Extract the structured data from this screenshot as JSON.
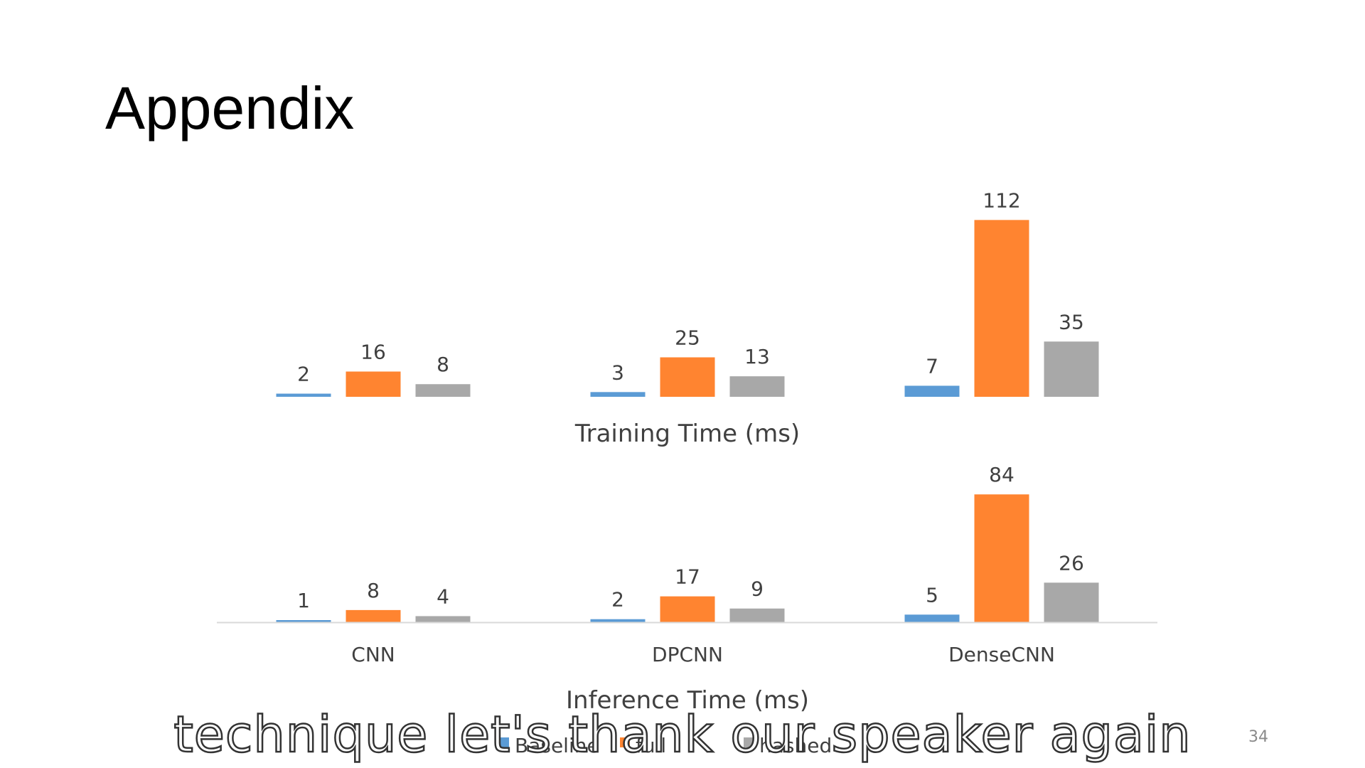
{
  "slide": {
    "title": "Appendix",
    "page_number": "34",
    "subtitle": "technique let's thank our speaker again"
  },
  "colors": {
    "Baseline": "#5b9bd5",
    "series2": "#ff8430",
    "series3": "#a8a8a8"
  },
  "chart_data": [
    {
      "type": "bar",
      "title": "Training Time (ms)",
      "categories": [
        "CNN",
        "DPCNN",
        "DenseCNN"
      ],
      "series": [
        {
          "values": [
            2,
            3,
            7
          ]
        },
        {
          "values": [
            16,
            25,
            112
          ]
        },
        {
          "values": [
            8,
            13,
            35
          ]
        }
      ],
      "data_labels": true
    },
    {
      "type": "bar",
      "title": "Inference Time (ms)",
      "categories": [
        "CNN",
        "DPCNN",
        "DenseCNN"
      ],
      "series": [
        {
          "values": [
            1,
            2,
            5
          ]
        },
        {
          "values": [
            8,
            17,
            84
          ]
        },
        {
          "values": [
            4,
            9,
            26
          ]
        }
      ],
      "data_labels": true
    }
  ],
  "legend": {
    "placement": "bottom",
    "entries": [
      "Baseline",
      "full",
      "hashed"
    ]
  }
}
